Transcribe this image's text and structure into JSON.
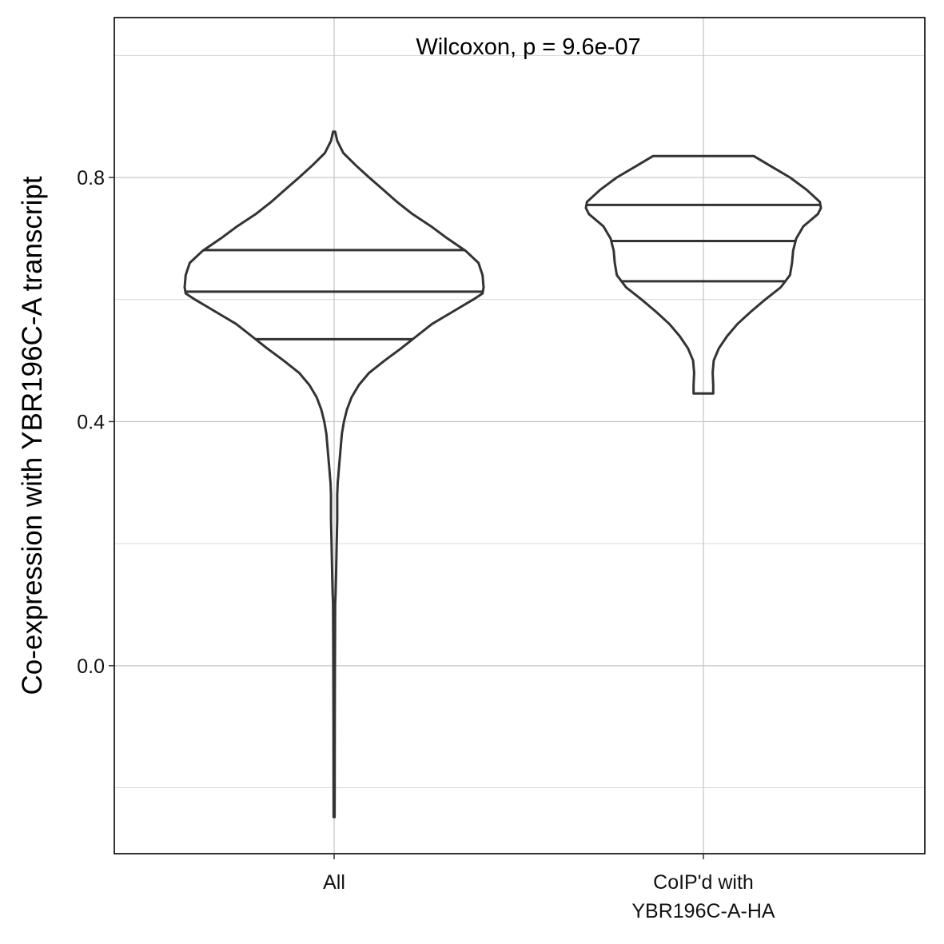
{
  "chart_data": {
    "type": "violin",
    "title": "",
    "xlabel": "",
    "ylabel": "Co-expression with YBR196C-A transcript",
    "ylim": [
      -0.308,
      1.062
    ],
    "y_ticks": [
      "0.0",
      "0.4",
      "0.8"
    ],
    "grid": true,
    "annotation": "Wilcoxon, p = 9.6e-07",
    "categories": [
      {
        "lines": [
          "All"
        ]
      },
      {
        "lines": [
          "CoIP'd with",
          "YBR196C-A-HA"
        ]
      }
    ],
    "series": [
      {
        "category": "All",
        "min": -0.248,
        "max": 0.875,
        "quantiles": {
          "q25": 0.535,
          "median": 0.613,
          "q75": 0.681
        },
        "density": [
          [
            0.875,
            0.002
          ],
          [
            0.86,
            0.006
          ],
          [
            0.84,
            0.018
          ],
          [
            0.82,
            0.042
          ],
          [
            0.8,
            0.068
          ],
          [
            0.78,
            0.095
          ],
          [
            0.76,
            0.122
          ],
          [
            0.74,
            0.152
          ],
          [
            0.72,
            0.188
          ],
          [
            0.7,
            0.22
          ],
          [
            0.68,
            0.255
          ],
          [
            0.66,
            0.28
          ],
          [
            0.64,
            0.288
          ],
          [
            0.62,
            0.29
          ],
          [
            0.61,
            0.288
          ],
          [
            0.6,
            0.27
          ],
          [
            0.58,
            0.23
          ],
          [
            0.56,
            0.19
          ],
          [
            0.54,
            0.16
          ],
          [
            0.52,
            0.13
          ],
          [
            0.5,
            0.098
          ],
          [
            0.48,
            0.068
          ],
          [
            0.46,
            0.048
          ],
          [
            0.44,
            0.034
          ],
          [
            0.42,
            0.025
          ],
          [
            0.4,
            0.019
          ],
          [
            0.38,
            0.015
          ],
          [
            0.36,
            0.013
          ],
          [
            0.34,
            0.011
          ],
          [
            0.32,
            0.009
          ],
          [
            0.31,
            0.008
          ],
          [
            0.3,
            0.007
          ],
          [
            0.28,
            0.006
          ],
          [
            0.26,
            0.006
          ],
          [
            0.24,
            0.006
          ],
          [
            0.2,
            0.005
          ],
          [
            0.16,
            0.004
          ],
          [
            0.12,
            0.003
          ],
          [
            0.1,
            0.002
          ],
          [
            0.0,
            0.0015
          ],
          [
            -0.1,
            0.0012
          ],
          [
            -0.2,
            0.0011
          ],
          [
            -0.248,
            0.001
          ]
        ]
      },
      {
        "category": "CoIP'd with YBR196C-A-HA",
        "min": 0.446,
        "max": 0.835,
        "quantiles": {
          "q25": 0.63,
          "median": 0.696,
          "q75": 0.755
        },
        "density": [
          [
            0.835,
            0.098
          ],
          [
            0.82,
            0.128
          ],
          [
            0.8,
            0.168
          ],
          [
            0.78,
            0.2
          ],
          [
            0.76,
            0.226
          ],
          [
            0.75,
            0.228
          ],
          [
            0.74,
            0.222
          ],
          [
            0.72,
            0.194
          ],
          [
            0.7,
            0.18
          ],
          [
            0.68,
            0.174
          ],
          [
            0.66,
            0.172
          ],
          [
            0.64,
            0.168
          ],
          [
            0.62,
            0.15
          ],
          [
            0.6,
            0.12
          ],
          [
            0.58,
            0.092
          ],
          [
            0.56,
            0.066
          ],
          [
            0.54,
            0.046
          ],
          [
            0.52,
            0.03
          ],
          [
            0.5,
            0.02
          ],
          [
            0.48,
            0.018
          ],
          [
            0.46,
            0.019
          ],
          [
            0.446,
            0.019
          ]
        ]
      }
    ]
  }
}
